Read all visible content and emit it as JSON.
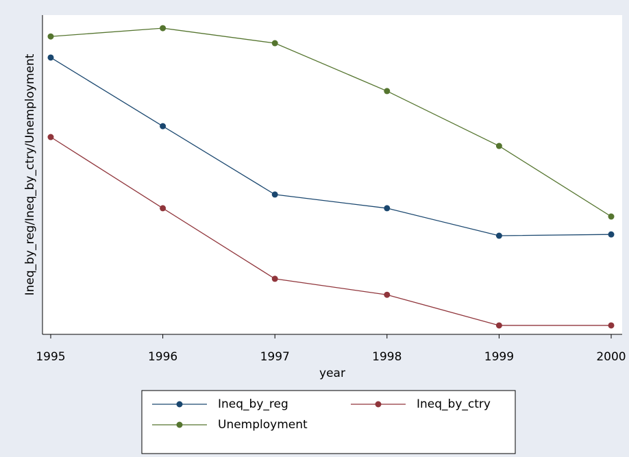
{
  "chart_data": {
    "type": "line",
    "x_label": "year",
    "y_label": "Ineq_by_reg/Ineq_by_ctry/Unemployment",
    "x": [
      1995,
      1996,
      1997,
      1998,
      1999,
      2000
    ],
    "xlim": [
      1995,
      2000
    ],
    "xticks": [
      1995,
      1996,
      1997,
      1998,
      1999,
      2000
    ],
    "ylim": [
      0,
      100
    ],
    "series": [
      {
        "name": "Ineq_by_reg",
        "color": "#1a476f",
        "values": [
          86.7,
          65.2,
          43.8,
          39.5,
          30.9,
          31.3
        ]
      },
      {
        "name": "Ineq_by_ctry",
        "color": "#90353b",
        "values": [
          61.8,
          39.5,
          17.4,
          12.4,
          2.8,
          2.8
        ]
      },
      {
        "name": "Unemployment",
        "color": "#55752f",
        "values": [
          93.3,
          95.9,
          91.2,
          76.2,
          59.0,
          36.9
        ]
      }
    ]
  }
}
